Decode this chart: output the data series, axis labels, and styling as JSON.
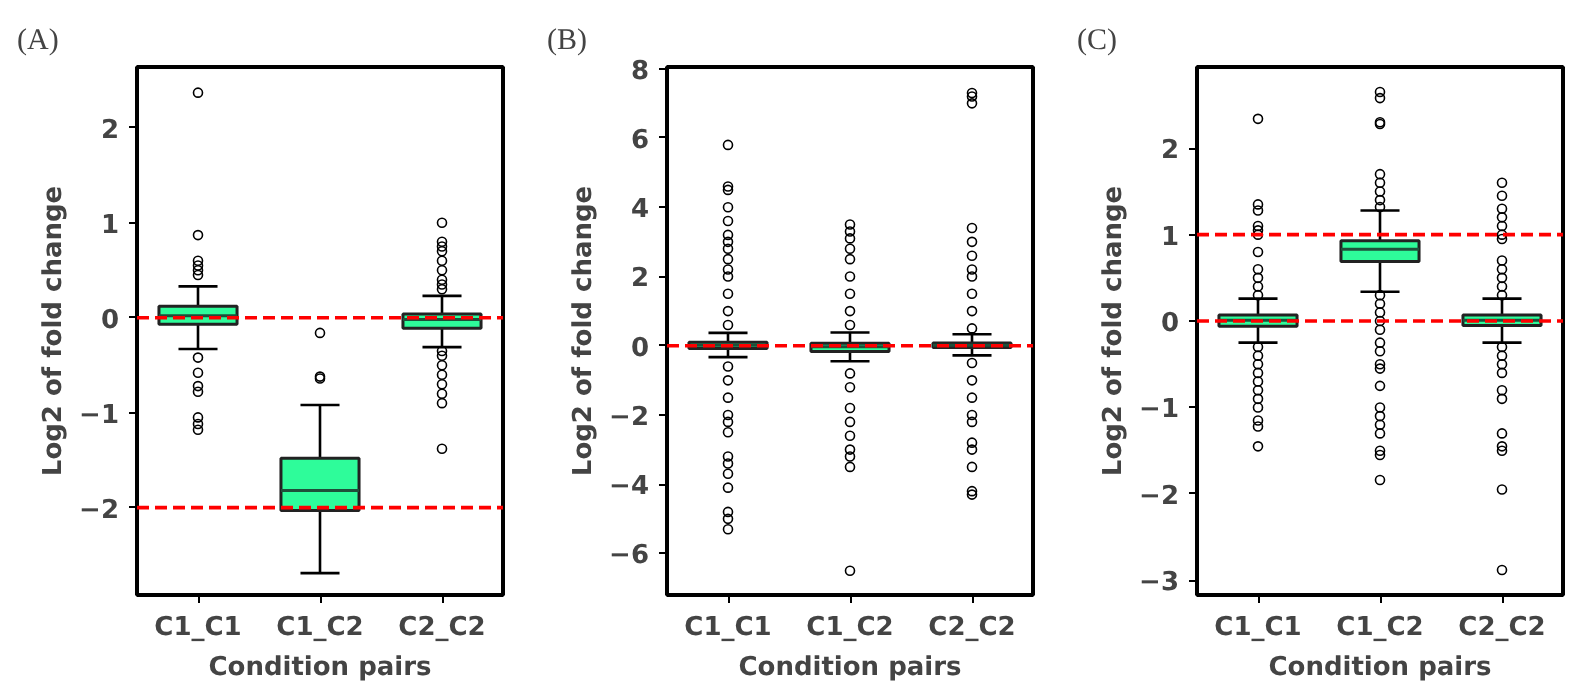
{
  "chart_data": [
    {
      "type": "box",
      "title": "(A)",
      "xlabel": "Condition pairs",
      "ylabel": "Log2 of fold change",
      "categories": [
        "C1_C1",
        "C1_C2",
        "C2_C2"
      ],
      "ylim": [
        -2.92,
        2.64
      ],
      "yticks": [
        {
          "value": -2,
          "label": "−2"
        },
        {
          "value": -1,
          "label": "−1"
        },
        0,
        1,
        2
      ],
      "series": [
        {
          "color": "#2efc9a",
          "boxes": [
            {
              "low": -0.33,
              "q1": -0.07,
              "median": 0.02,
              "q3": 0.12,
              "high": 0.33,
              "outliers": [
                2.37,
                0.87,
                0.6,
                0.55,
                0.5,
                0.45,
                -0.42,
                -0.58,
                -0.72,
                -0.78,
                -1.05,
                -1.12,
                -1.18
              ]
            },
            {
              "low": -2.69,
              "q1": -2.03,
              "median": -1.82,
              "q3": -1.48,
              "high": -0.92,
              "outliers": [
                -0.16,
                -0.62,
                -0.64
              ]
            },
            {
              "low": -0.31,
              "q1": -0.11,
              "median": -0.02,
              "q3": 0.04,
              "high": 0.23,
              "outliers": [
                1.0,
                0.8,
                0.75,
                0.7,
                0.6,
                0.5,
                0.4,
                0.35,
                0.3,
                -0.35,
                -0.4,
                -0.5,
                -0.6,
                -0.7,
                -0.8,
                -0.9,
                -1.38
              ]
            }
          ]
        }
      ],
      "ref_lines": [
        {
          "axis": "y",
          "value": 0,
          "color": "#ff0000",
          "line_style": "dashed"
        },
        {
          "axis": "y",
          "value": -2,
          "color": "#ff0000",
          "line_style": "dashed"
        }
      ]
    },
    {
      "type": "box",
      "title": "(B)",
      "xlabel": "Condition pairs",
      "ylabel": "Log2 of fold change",
      "categories": [
        "C1_C1",
        "C1_C2",
        "C2_C2"
      ],
      "ylim": [
        -7.2,
        8.05
      ],
      "yticks": [
        {
          "value": -6,
          "label": "−6"
        },
        {
          "value": -4,
          "label": "−4"
        },
        {
          "value": -2,
          "label": "−2"
        },
        0,
        2,
        4,
        6,
        8
      ],
      "series": [
        {
          "color": "#2efc9a",
          "boxes": [
            {
              "low": -0.33,
              "q1": -0.08,
              "median": 0.01,
              "q3": 0.1,
              "high": 0.37,
              "outliers": [
                5.8,
                4.6,
                4.5,
                4.0,
                3.6,
                3.2,
                3.0,
                2.8,
                2.5,
                2.2,
                2.0,
                1.5,
                1.0,
                0.6,
                -0.6,
                -1.0,
                -1.5,
                -2.0,
                -2.2,
                -2.5,
                -3.2,
                -3.4,
                -3.7,
                -4.1,
                -4.8,
                -5.0,
                -5.3
              ]
            },
            {
              "low": -0.45,
              "q1": -0.17,
              "median": -0.03,
              "q3": 0.07,
              "high": 0.38,
              "outliers": [
                3.5,
                3.3,
                3.1,
                2.8,
                2.5,
                2.0,
                1.5,
                1.0,
                0.6,
                -0.8,
                -1.2,
                -1.8,
                -2.2,
                -2.6,
                -3.0,
                -3.2,
                -3.5,
                -6.5
              ]
            },
            {
              "low": -0.28,
              "q1": -0.05,
              "median": 0.01,
              "q3": 0.08,
              "high": 0.33,
              "outliers": [
                7.3,
                7.2,
                7.0,
                3.4,
                3.0,
                2.6,
                2.2,
                2.0,
                1.5,
                1.0,
                0.5,
                -0.5,
                -1.0,
                -1.5,
                -2.0,
                -2.2,
                -2.8,
                -3.0,
                -3.5,
                -4.2,
                -4.3
              ]
            }
          ]
        }
      ],
      "ref_lines": [
        {
          "axis": "y",
          "value": 0,
          "color": "#ff0000",
          "line_style": "dashed"
        }
      ]
    },
    {
      "type": "box",
      "title": "(C)",
      "xlabel": "Condition pairs",
      "ylabel": "Log2 of fold change",
      "categories": [
        "C1_C1",
        "C1_C2",
        "C2_C2"
      ],
      "ylim": [
        -3.17,
        2.94
      ],
      "yticks": [
        {
          "value": -3,
          "label": "−3"
        },
        {
          "value": -2,
          "label": "−2"
        },
        {
          "value": -1,
          "label": "−1"
        },
        0,
        1,
        2
      ],
      "series": [
        {
          "color": "#2efc9a",
          "boxes": [
            {
              "low": -0.25,
              "q1": -0.06,
              "median": 0.01,
              "q3": 0.07,
              "high": 0.26,
              "outliers": [
                2.34,
                1.35,
                1.28,
                1.1,
                1.05,
                1.0,
                0.8,
                0.6,
                0.5,
                0.4,
                0.3,
                -0.3,
                -0.4,
                -0.5,
                -0.6,
                -0.7,
                -0.8,
                -0.9,
                -1.0,
                -1.15,
                -1.22,
                -1.45
              ]
            },
            {
              "low": 0.34,
              "q1": 0.69,
              "median": 0.83,
              "q3": 0.93,
              "high": 1.28,
              "outliers": [
                2.65,
                2.58,
                2.3,
                2.28,
                1.7,
                1.6,
                1.5,
                1.4,
                1.32,
                0.3,
                0.2,
                0.1,
                0.0,
                -0.1,
                -0.25,
                -0.35,
                -0.5,
                -0.55,
                -0.75,
                -1.0,
                -1.1,
                -1.2,
                -1.3,
                -1.5,
                -1.55,
                -1.84
              ]
            },
            {
              "low": -0.25,
              "q1": -0.05,
              "median": 0.01,
              "q3": 0.07,
              "high": 0.26,
              "outliers": [
                1.6,
                1.45,
                1.3,
                1.2,
                1.1,
                1.0,
                0.95,
                0.7,
                0.6,
                0.5,
                0.4,
                0.3,
                -0.3,
                -0.4,
                -0.5,
                -0.6,
                -0.8,
                -0.9,
                -1.3,
                -1.45,
                -1.5,
                -1.95,
                -2.88
              ]
            }
          ]
        }
      ],
      "ref_lines": [
        {
          "axis": "y",
          "value": 0,
          "color": "#ff0000",
          "line_style": "dashed"
        },
        {
          "axis": "y",
          "value": 1,
          "color": "#ff0000",
          "line_style": "dashed"
        }
      ]
    }
  ]
}
